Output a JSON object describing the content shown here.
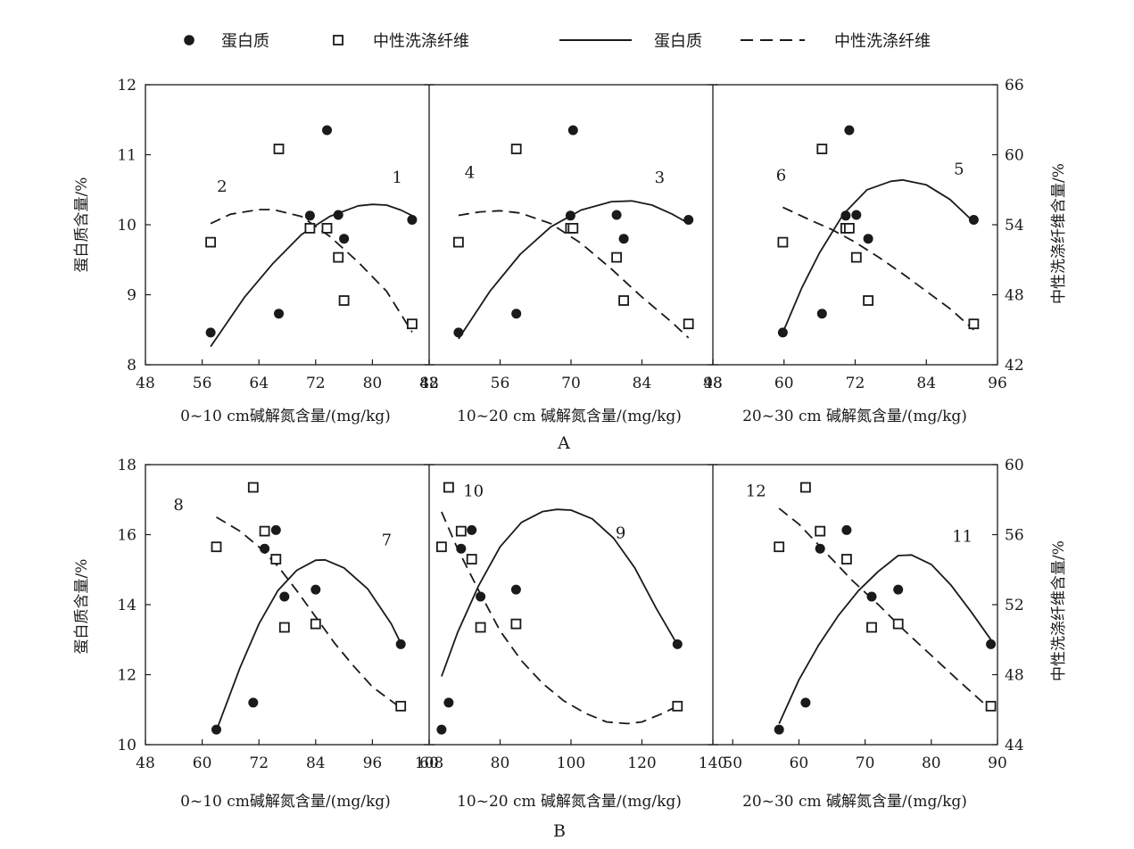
{
  "legend": {
    "protein_marker": "蛋白质",
    "ndf_marker": "中性洗涤纤维",
    "protein_line": "蛋白质",
    "ndf_line": "中性洗涤纤维"
  },
  "colors": {
    "ink": "#1a1a1a",
    "background": "#ffffff"
  },
  "chart_data": [
    {
      "type": "scatter",
      "panel": "A",
      "depth": "0~10 cm",
      "xlabel": "0~10 cm碱解氮含量/(mg/kg)",
      "ylabel": "蛋白质含量/%",
      "y2label": "中性洗涤纤维含量/%",
      "xlim": [
        48,
        88
      ],
      "xticks": [
        48,
        56,
        64,
        72,
        80,
        88
      ],
      "ylim": [
        8,
        12
      ],
      "yticks": [
        8,
        9,
        10,
        11,
        12
      ],
      "y2lim": [
        42,
        66
      ],
      "y2ticks": [
        42,
        48,
        54,
        60,
        66
      ],
      "protein_points": [
        [
          57.2,
          8.46
        ],
        [
          66.8,
          8.73
        ],
        [
          71.2,
          10.13
        ],
        [
          73.6,
          11.35
        ],
        [
          75.2,
          10.14
        ],
        [
          76.0,
          9.8
        ],
        [
          85.6,
          10.07
        ]
      ],
      "ndf_points": [
        [
          57.2,
          52.5
        ],
        [
          66.8,
          60.5
        ],
        [
          71.2,
          53.7
        ],
        [
          73.6,
          53.7
        ],
        [
          75.2,
          51.2
        ],
        [
          76.0,
          47.5
        ],
        [
          85.6,
          45.5
        ]
      ],
      "protein_curve": {
        "label": "1",
        "x_range": [
          57.2,
          85.6
        ],
        "samples": [
          [
            57.2,
            8.26
          ],
          [
            62,
            8.97
          ],
          [
            66,
            9.45
          ],
          [
            70,
            9.86
          ],
          [
            74,
            10.12
          ],
          [
            78,
            10.27
          ],
          [
            80,
            10.29
          ],
          [
            82,
            10.28
          ],
          [
            84,
            10.21
          ],
          [
            85.6,
            10.13
          ]
        ]
      },
      "ndf_curve": {
        "label": "2",
        "x_range": [
          57.2,
          85.6
        ],
        "samples": [
          [
            57.2,
            54.1
          ],
          [
            60,
            54.9
          ],
          [
            64,
            55.3
          ],
          [
            66,
            55.3
          ],
          [
            70,
            54.7
          ],
          [
            74,
            53.0
          ],
          [
            78,
            50.8
          ],
          [
            82,
            48.3
          ],
          [
            85.6,
            44.8
          ]
        ]
      },
      "curve_label_pos": {
        "protein": [
          83.5,
          10.6
        ],
        "ndf": [
          58.8,
          10.47
        ]
      }
    },
    {
      "type": "scatter",
      "panel": "A",
      "depth": "10~20 cm",
      "xlabel": "10~20 cm 碱解氮含量/(mg/kg)",
      "ylabel": "蛋白质含量/%",
      "y2label": "中性洗涤纤维含量/%",
      "xlim": [
        42,
        98
      ],
      "xticks": [
        42,
        56,
        70,
        84,
        98
      ],
      "ylim": [
        8,
        12
      ],
      "yticks": [
        8,
        9,
        10,
        11,
        12
      ],
      "y2lim": [
        42,
        66
      ],
      "y2ticks": [
        42,
        48,
        54,
        60,
        66
      ],
      "protein_points": [
        [
          47.8,
          8.46
        ],
        [
          59.2,
          8.73
        ],
        [
          69.9,
          10.13
        ],
        [
          70.4,
          11.35
        ],
        [
          79.0,
          10.14
        ],
        [
          80.4,
          9.8
        ],
        [
          93.2,
          10.07
        ]
      ],
      "ndf_points": [
        [
          47.8,
          52.5
        ],
        [
          59.2,
          60.5
        ],
        [
          69.9,
          53.7
        ],
        [
          70.4,
          53.7
        ],
        [
          79.0,
          51.2
        ],
        [
          80.4,
          47.5
        ],
        [
          93.2,
          45.5
        ]
      ],
      "protein_curve": {
        "label": "3",
        "x_range": [
          47.8,
          93.2
        ],
        "samples": [
          [
            47.8,
            8.37
          ],
          [
            54,
            9.05
          ],
          [
            60,
            9.58
          ],
          [
            66,
            9.97
          ],
          [
            72,
            10.21
          ],
          [
            78,
            10.33
          ],
          [
            82,
            10.34
          ],
          [
            86,
            10.28
          ],
          [
            90,
            10.15
          ],
          [
            93.2,
            10.02
          ]
        ]
      },
      "ndf_curve": {
        "label": "4",
        "x_range": [
          47.8,
          93.2
        ],
        "samples": [
          [
            47.8,
            54.8
          ],
          [
            52,
            55.1
          ],
          [
            56,
            55.2
          ],
          [
            60,
            55.0
          ],
          [
            66,
            54.1
          ],
          [
            72,
            52.4
          ],
          [
            78,
            50.2
          ],
          [
            84,
            47.8
          ],
          [
            90,
            45.6
          ],
          [
            93.2,
            44.3
          ]
        ]
      },
      "curve_label_pos": {
        "protein": [
          87.5,
          10.6
        ],
        "ndf": [
          50.0,
          10.67
        ]
      }
    },
    {
      "type": "scatter",
      "panel": "A",
      "depth": "20~30 cm",
      "xlabel": "20~30 cm 碱解氮含量/(mg/kg)",
      "ylabel": "蛋白质含量/%",
      "y2label": "中性洗涤纤维含量/%",
      "xlim": [
        48,
        96
      ],
      "xticks": [
        48,
        60,
        72,
        84,
        96
      ],
      "ylim": [
        8,
        12
      ],
      "yticks": [
        8,
        9,
        10,
        11,
        12
      ],
      "y2lim": [
        42,
        66
      ],
      "y2ticks": [
        42,
        48,
        54,
        60,
        66
      ],
      "protein_points": [
        [
          59.8,
          8.46
        ],
        [
          66.4,
          8.73
        ],
        [
          70.4,
          10.13
        ],
        [
          71.0,
          11.35
        ],
        [
          72.2,
          10.14
        ],
        [
          74.2,
          9.8
        ],
        [
          92.0,
          10.07
        ]
      ],
      "ndf_points": [
        [
          59.8,
          52.5
        ],
        [
          66.4,
          60.5
        ],
        [
          70.4,
          53.7
        ],
        [
          71.0,
          53.7
        ],
        [
          72.2,
          51.2
        ],
        [
          74.2,
          47.5
        ],
        [
          92.0,
          45.5
        ]
      ],
      "protein_curve": {
        "label": "5",
        "x_range": [
          59.8,
          92.0
        ],
        "samples": [
          [
            59.8,
            8.46
          ],
          [
            63,
            9.1
          ],
          [
            66,
            9.6
          ],
          [
            70,
            10.15
          ],
          [
            74,
            10.5
          ],
          [
            78,
            10.62
          ],
          [
            80,
            10.64
          ],
          [
            84,
            10.57
          ],
          [
            88,
            10.36
          ],
          [
            92,
            10.04
          ]
        ]
      },
      "ndf_curve": {
        "label": "6",
        "x_range": [
          59.8,
          92.0
        ],
        "samples": [
          [
            59.8,
            55.5
          ],
          [
            64,
            54.5
          ],
          [
            68,
            53.6
          ],
          [
            72,
            52.5
          ],
          [
            76,
            51.2
          ],
          [
            80,
            49.8
          ],
          [
            84,
            48.3
          ],
          [
            88,
            46.8
          ],
          [
            92,
            45.0
          ]
        ]
      },
      "curve_label_pos": {
        "protein": [
          89.5,
          10.72
        ],
        "ndf": [
          59.5,
          10.63
        ]
      }
    },
    {
      "type": "scatter",
      "panel": "B",
      "depth": "0~10 cm",
      "xlabel": "0~10 cm碱解氮含量/(mg/kg)",
      "ylabel": "蛋白质含量/%",
      "y2label": "中性洗涤纤维含量/%",
      "xlim": [
        48,
        108
      ],
      "xticks": [
        48,
        60,
        72,
        84,
        96,
        108
      ],
      "ylim": [
        10,
        18
      ],
      "yticks": [
        10,
        12,
        14,
        16,
        18
      ],
      "y2lim": [
        44,
        60
      ],
      "y2ticks": [
        44,
        48,
        52,
        56,
        60
      ],
      "protein_points": [
        [
          63.0,
          10.43
        ],
        [
          70.8,
          11.2
        ],
        [
          73.2,
          15.6
        ],
        [
          75.6,
          16.13
        ],
        [
          77.4,
          14.23
        ],
        [
          84.0,
          14.43
        ],
        [
          102.0,
          12.87
        ]
      ],
      "ndf_points": [
        [
          63.0,
          55.3
        ],
        [
          70.8,
          58.7
        ],
        [
          73.2,
          56.2
        ],
        [
          75.6,
          54.6
        ],
        [
          77.4,
          50.7
        ],
        [
          84.0,
          50.9
        ],
        [
          102.0,
          46.2
        ]
      ],
      "protein_curve": {
        "label": "7",
        "x_range": [
          63.0,
          102.0
        ],
        "samples": [
          [
            63,
            10.4
          ],
          [
            68,
            12.2
          ],
          [
            72,
            13.45
          ],
          [
            76,
            14.4
          ],
          [
            80,
            14.98
          ],
          [
            84,
            15.27
          ],
          [
            86,
            15.28
          ],
          [
            90,
            15.05
          ],
          [
            95,
            14.45
          ],
          [
            100,
            13.45
          ],
          [
            102,
            12.9
          ]
        ]
      },
      "ndf_curve": {
        "label": "8",
        "x_range": [
          63.0,
          102.0
        ],
        "samples": [
          [
            63,
            57.0
          ],
          [
            68,
            56.2
          ],
          [
            72,
            55.3
          ],
          [
            76,
            54.2
          ],
          [
            80,
            52.8
          ],
          [
            84,
            51.3
          ],
          [
            88,
            49.8
          ],
          [
            92,
            48.5
          ],
          [
            96,
            47.3
          ],
          [
            102,
            46.1
          ]
        ]
      },
      "curve_label_pos": {
        "protein": [
          99.0,
          15.7
        ],
        "ndf": [
          55.0,
          16.7
        ]
      }
    },
    {
      "type": "scatter",
      "panel": "B",
      "depth": "10~20 cm",
      "xlabel": "10~20 cm 碱解氮含量/(mg/kg)",
      "ylabel": "蛋白质含量/%",
      "y2label": "中性洗涤纤维含量/%",
      "xlim": [
        60,
        140
      ],
      "xticks": [
        60,
        80,
        100,
        120,
        140
      ],
      "ylim": [
        10,
        18
      ],
      "yticks": [
        10,
        12,
        14,
        16,
        18
      ],
      "y2lim": [
        44,
        60
      ],
      "y2ticks": [
        44,
        48,
        52,
        56,
        60
      ],
      "protein_points": [
        [
          63.5,
          10.43
        ],
        [
          65.5,
          11.2
        ],
        [
          69.0,
          15.6
        ],
        [
          72.0,
          16.13
        ],
        [
          74.5,
          14.23
        ],
        [
          84.5,
          14.43
        ],
        [
          130.0,
          12.87
        ]
      ],
      "ndf_points": [
        [
          63.5,
          55.3
        ],
        [
          65.5,
          58.7
        ],
        [
          69.0,
          56.2
        ],
        [
          72.0,
          54.6
        ],
        [
          74.5,
          50.7
        ],
        [
          84.5,
          50.9
        ],
        [
          130.0,
          46.2
        ]
      ],
      "protein_curve": {
        "label": "9",
        "x_range": [
          63.5,
          130.0
        ],
        "samples": [
          [
            63.5,
            11.95
          ],
          [
            68,
            13.2
          ],
          [
            74,
            14.55
          ],
          [
            80,
            15.65
          ],
          [
            86,
            16.35
          ],
          [
            92,
            16.66
          ],
          [
            96,
            16.72
          ],
          [
            100,
            16.7
          ],
          [
            106,
            16.45
          ],
          [
            112,
            15.9
          ],
          [
            118,
            15.05
          ],
          [
            124,
            13.9
          ],
          [
            130,
            12.85
          ]
        ]
      },
      "ndf_curve": {
        "label": "10",
        "x_range": [
          63.5,
          130.0
        ],
        "samples": [
          [
            63.5,
            57.3
          ],
          [
            68,
            55.2
          ],
          [
            74,
            52.8
          ],
          [
            80,
            50.5
          ],
          [
            86,
            48.8
          ],
          [
            92,
            47.5
          ],
          [
            98,
            46.5
          ],
          [
            104,
            45.8
          ],
          [
            110,
            45.3
          ],
          [
            116,
            45.2
          ],
          [
            120,
            45.3
          ],
          [
            126,
            45.8
          ],
          [
            130,
            46.2
          ]
        ]
      },
      "curve_label_pos": {
        "protein": [
          114.0,
          15.9
        ],
        "ndf": [
          72.5,
          17.1
        ]
      }
    },
    {
      "type": "scatter",
      "panel": "B",
      "depth": "20~30 cm",
      "xlabel": "20~30 cm 碱解氮含量/(mg/kg)",
      "ylabel": "蛋白质含量/%",
      "y2label": "中性洗涤纤维含量/%",
      "xlim": [
        47,
        90
      ],
      "xticks": [
        50,
        60,
        70,
        80,
        90
      ],
      "ylim": [
        10,
        18
      ],
      "yticks": [
        10,
        12,
        14,
        16,
        18
      ],
      "y2lim": [
        44,
        60
      ],
      "y2ticks": [
        44,
        48,
        52,
        56,
        60
      ],
      "protein_points": [
        [
          57.0,
          10.43
        ],
        [
          61.0,
          11.2
        ],
        [
          63.2,
          15.6
        ],
        [
          67.2,
          16.13
        ],
        [
          71.0,
          14.23
        ],
        [
          75.0,
          14.43
        ],
        [
          89.0,
          12.87
        ]
      ],
      "ndf_points": [
        [
          57.0,
          55.3
        ],
        [
          61.0,
          58.7
        ],
        [
          63.2,
          56.2
        ],
        [
          67.2,
          54.6
        ],
        [
          71.0,
          50.7
        ],
        [
          75.0,
          50.9
        ],
        [
          89.0,
          46.2
        ]
      ],
      "protein_curve": {
        "label": "11",
        "x_range": [
          57.0,
          89.0
        ],
        "samples": [
          [
            57,
            10.6
          ],
          [
            60,
            11.85
          ],
          [
            63,
            12.85
          ],
          [
            66,
            13.7
          ],
          [
            69,
            14.4
          ],
          [
            72,
            14.95
          ],
          [
            75,
            15.4
          ],
          [
            77,
            15.42
          ],
          [
            80,
            15.15
          ],
          [
            83,
            14.55
          ],
          [
            86,
            13.8
          ],
          [
            89,
            13.0
          ]
        ]
      },
      "ndf_curve": {
        "label": "12",
        "x_range": [
          57.0,
          89.0
        ],
        "samples": [
          [
            57,
            57.5
          ],
          [
            60,
            56.6
          ],
          [
            64,
            55.0
          ],
          [
            68,
            53.4
          ],
          [
            72,
            52.0
          ],
          [
            76,
            50.5
          ],
          [
            80,
            49.1
          ],
          [
            84,
            47.7
          ],
          [
            89,
            46.0
          ]
        ]
      },
      "curve_label_pos": {
        "protein": [
          84.7,
          15.8
        ],
        "ndf": [
          53.5,
          17.1
        ]
      }
    }
  ],
  "panel_labels": [
    "A",
    "B"
  ]
}
